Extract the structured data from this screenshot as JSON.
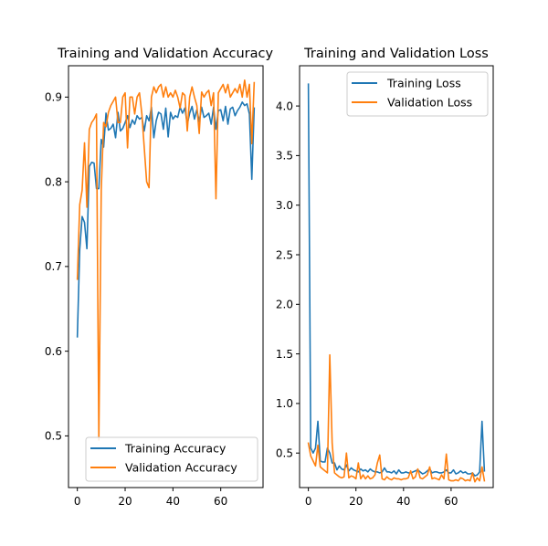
{
  "chart_data": [
    {
      "type": "line",
      "title": "Training and Validation Accuracy",
      "xlim": [
        -3.7,
        77.7
      ],
      "ylim": [
        0.439,
        0.937
      ],
      "xticks": [
        0,
        20,
        40,
        60
      ],
      "yticks": [
        0.5,
        0.6,
        0.7,
        0.8,
        0.9
      ],
      "ytick_labels": [
        "0.5",
        "0.6",
        "0.7",
        "0.8",
        "0.9"
      ],
      "legend_position": "lower-right",
      "series": [
        {
          "name": "Training Accuracy",
          "color": "#1f77b4",
          "x": [
            0,
            1,
            2,
            3,
            4,
            5,
            6,
            7,
            8,
            9,
            10,
            11,
            12,
            13,
            14,
            15,
            16,
            17,
            18,
            19,
            20,
            21,
            22,
            23,
            24,
            25,
            26,
            27,
            28,
            29,
            30,
            31,
            32,
            33,
            34,
            35,
            36,
            37,
            38,
            39,
            40,
            41,
            42,
            43,
            44,
            45,
            46,
            47,
            48,
            49,
            50,
            51,
            52,
            53,
            54,
            55,
            56,
            57,
            58,
            59,
            60,
            61,
            62,
            63,
            64,
            65,
            66,
            67,
            68,
            69,
            70,
            71,
            72,
            73,
            74
          ],
          "y": [
            0.617,
            0.72,
            0.759,
            0.752,
            0.721,
            0.818,
            0.823,
            0.822,
            0.792,
            0.792,
            0.85,
            0.841,
            0.881,
            0.861,
            0.863,
            0.868,
            0.852,
            0.882,
            0.86,
            0.863,
            0.87,
            0.878,
            0.864,
            0.873,
            0.868,
            0.878,
            0.874,
            0.876,
            0.86,
            0.878,
            0.872,
            0.888,
            0.852,
            0.872,
            0.882,
            0.88,
            0.862,
            0.887,
            0.853,
            0.882,
            0.874,
            0.878,
            0.876,
            0.888,
            0.881,
            0.887,
            0.868,
            0.881,
            0.889,
            0.874,
            0.885,
            0.871,
            0.888,
            0.876,
            0.878,
            0.881,
            0.868,
            0.888,
            0.862,
            0.884,
            0.885,
            0.872,
            0.889,
            0.868,
            0.886,
            0.888,
            0.878,
            0.884,
            0.888,
            0.894,
            0.89,
            0.892,
            0.88,
            0.803,
            0.887
          ]
        },
        {
          "name": "Validation Accuracy",
          "color": "#ff7f0e",
          "x": [
            0,
            1,
            2,
            3,
            4,
            5,
            6,
            7,
            8,
            9,
            10,
            11,
            12,
            13,
            14,
            15,
            16,
            17,
            18,
            19,
            20,
            21,
            22,
            23,
            24,
            25,
            26,
            27,
            28,
            29,
            30,
            31,
            32,
            33,
            34,
            35,
            36,
            37,
            38,
            39,
            40,
            41,
            42,
            43,
            44,
            45,
            46,
            47,
            48,
            49,
            50,
            51,
            52,
            53,
            54,
            55,
            56,
            57,
            58,
            59,
            60,
            61,
            62,
            63,
            64,
            65,
            66,
            67,
            68,
            69,
            70,
            71,
            72,
            73,
            74
          ],
          "y": [
            0.685,
            0.773,
            0.79,
            0.846,
            0.77,
            0.862,
            0.87,
            0.874,
            0.88,
            0.495,
            0.79,
            0.87,
            0.865,
            0.882,
            0.89,
            0.895,
            0.9,
            0.87,
            0.87,
            0.9,
            0.905,
            0.84,
            0.9,
            0.9,
            0.88,
            0.9,
            0.905,
            0.88,
            0.84,
            0.8,
            0.793,
            0.9,
            0.912,
            0.905,
            0.912,
            0.915,
            0.9,
            0.912,
            0.9,
            0.905,
            0.9,
            0.908,
            0.9,
            0.887,
            0.905,
            0.902,
            0.86,
            0.9,
            0.912,
            0.9,
            0.89,
            0.857,
            0.906,
            0.9,
            0.905,
            0.908,
            0.89,
            0.905,
            0.78,
            0.905,
            0.91,
            0.915,
            0.905,
            0.915,
            0.9,
            0.905,
            0.91,
            0.905,
            0.915,
            0.9,
            0.92,
            0.9,
            0.915,
            0.845,
            0.917
          ]
        }
      ]
    },
    {
      "type": "line",
      "title": "Training and Validation Loss",
      "xlim": [
        -3.7,
        77.7
      ],
      "ylim": [
        0.152,
        4.406
      ],
      "xticks": [
        0,
        20,
        40,
        60
      ],
      "yticks": [
        0.5,
        1.0,
        1.5,
        2.0,
        2.5,
        3.0,
        3.5,
        4.0
      ],
      "ytick_labels": [
        "0.5",
        "1.0",
        "1.5",
        "2.0",
        "2.5",
        "3.0",
        "3.5",
        "4.0"
      ],
      "legend_position": "upper-right",
      "series": [
        {
          "name": "Training Loss",
          "color": "#1f77b4",
          "x": [
            0,
            1,
            2,
            3,
            4,
            5,
            6,
            7,
            8,
            9,
            10,
            11,
            12,
            13,
            14,
            15,
            16,
            17,
            18,
            19,
            20,
            21,
            22,
            23,
            24,
            25,
            26,
            27,
            28,
            29,
            30,
            31,
            32,
            33,
            34,
            35,
            36,
            37,
            38,
            39,
            40,
            41,
            42,
            43,
            44,
            45,
            46,
            47,
            48,
            49,
            50,
            51,
            52,
            53,
            54,
            55,
            56,
            57,
            58,
            59,
            60,
            61,
            62,
            63,
            64,
            65,
            66,
            67,
            68,
            69,
            70,
            71,
            72,
            73,
            74
          ],
          "y": [
            4.22,
            0.55,
            0.5,
            0.55,
            0.82,
            0.42,
            0.41,
            0.41,
            0.55,
            0.5,
            0.4,
            0.4,
            0.33,
            0.37,
            0.34,
            0.33,
            0.38,
            0.32,
            0.35,
            0.33,
            0.32,
            0.31,
            0.34,
            0.32,
            0.33,
            0.31,
            0.34,
            0.32,
            0.31,
            0.31,
            0.3,
            0.31,
            0.35,
            0.31,
            0.31,
            0.3,
            0.32,
            0.29,
            0.33,
            0.3,
            0.3,
            0.31,
            0.3,
            0.3,
            0.31,
            0.32,
            0.33,
            0.31,
            0.29,
            0.3,
            0.32,
            0.34,
            0.3,
            0.31,
            0.31,
            0.3,
            0.3,
            0.31,
            0.33,
            0.3,
            0.3,
            0.33,
            0.29,
            0.3,
            0.32,
            0.3,
            0.31,
            0.29,
            0.29,
            0.3,
            0.27,
            0.28,
            0.31,
            0.82,
            0.32
          ]
        },
        {
          "name": "Validation Loss",
          "color": "#ff7f0e",
          "x": [
            0,
            1,
            2,
            3,
            4,
            5,
            6,
            7,
            8,
            9,
            10,
            11,
            12,
            13,
            14,
            15,
            16,
            17,
            18,
            19,
            20,
            21,
            22,
            23,
            24,
            25,
            26,
            27,
            28,
            29,
            30,
            31,
            32,
            33,
            34,
            35,
            36,
            37,
            38,
            39,
            40,
            41,
            42,
            43,
            44,
            45,
            46,
            47,
            48,
            49,
            50,
            51,
            52,
            53,
            54,
            55,
            56,
            57,
            58,
            59,
            60,
            61,
            62,
            63,
            64,
            65,
            66,
            67,
            68,
            69,
            70,
            71,
            72,
            73,
            74
          ],
          "y": [
            0.6,
            0.47,
            0.42,
            0.37,
            0.58,
            0.36,
            0.34,
            0.32,
            0.3,
            1.49,
            0.6,
            0.3,
            0.28,
            0.26,
            0.25,
            0.26,
            0.5,
            0.25,
            0.27,
            0.26,
            0.24,
            0.4,
            0.24,
            0.28,
            0.24,
            0.27,
            0.24,
            0.25,
            0.28,
            0.4,
            0.48,
            0.24,
            0.23,
            0.26,
            0.24,
            0.23,
            0.25,
            0.24,
            0.24,
            0.23,
            0.24,
            0.24,
            0.25,
            0.32,
            0.24,
            0.26,
            0.34,
            0.25,
            0.24,
            0.26,
            0.28,
            0.36,
            0.24,
            0.25,
            0.24,
            0.23,
            0.28,
            0.24,
            0.49,
            0.23,
            0.22,
            0.22,
            0.23,
            0.22,
            0.25,
            0.24,
            0.22,
            0.23,
            0.22,
            0.3,
            0.21,
            0.25,
            0.22,
            0.36,
            0.22
          ]
        }
      ]
    }
  ]
}
